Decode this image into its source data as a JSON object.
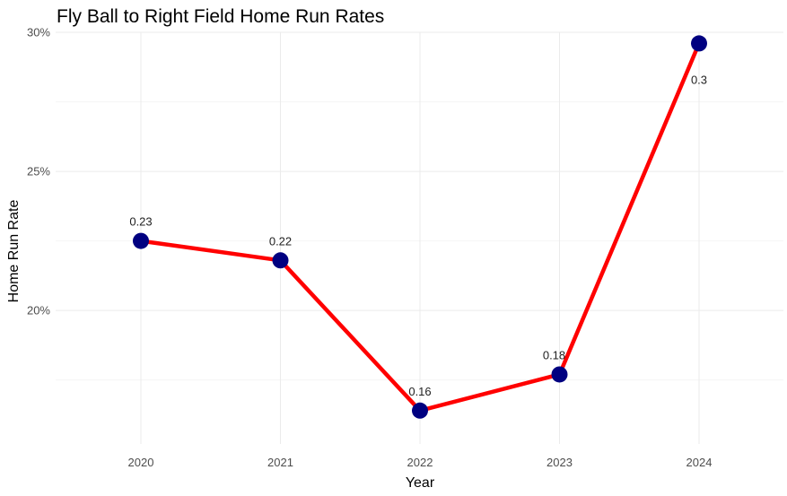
{
  "chart_data": {
    "type": "line",
    "title": "Fly Ball to Right Field Home Run Rates",
    "xlabel": "Year",
    "ylabel": "Home Run Rate",
    "x": [
      "2020",
      "2021",
      "2022",
      "2023",
      "2024"
    ],
    "series": [
      {
        "values": [
          0.225,
          0.218,
          0.164,
          0.177,
          0.296
        ],
        "labels": [
          "0.23",
          "0.22",
          "0.16",
          "0.18",
          "0.3"
        ],
        "line_color": "#ff0000",
        "point_color": "#000080"
      }
    ],
    "yticks": [
      0.2,
      0.25,
      0.3
    ],
    "ytick_labels": [
      "20%",
      "25%",
      "30%"
    ],
    "ylim": [
      0.152,
      0.3
    ],
    "grid": true,
    "legend": "none",
    "colors": {
      "grid_major": "#ebebeb",
      "grid_minor": "#f5f5f5"
    }
  }
}
